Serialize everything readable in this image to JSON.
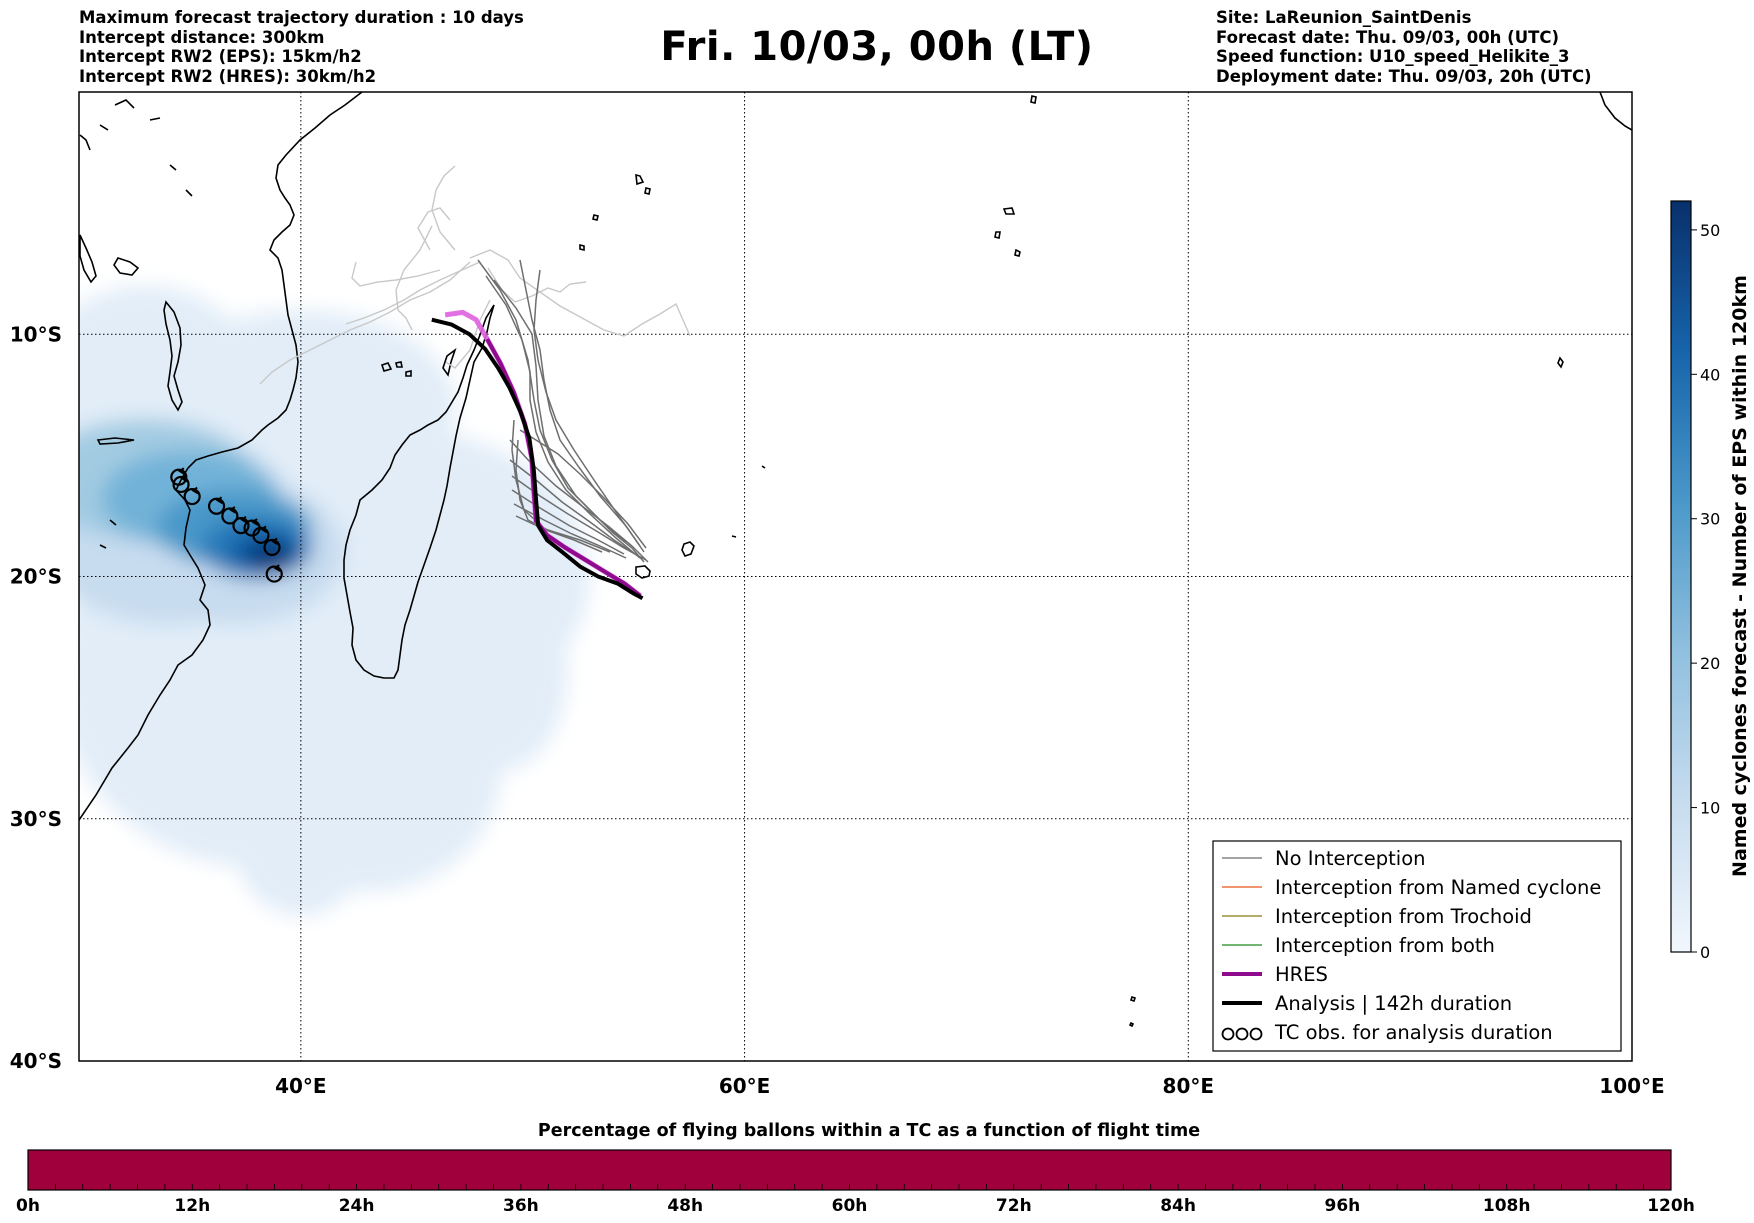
{
  "header": {
    "left_lines": [
      "Maximum forecast trajectory duration : 10 days",
      "Intercept distance: 300km",
      "Intercept RW2 (EPS):  15km/h2",
      "Intercept RW2 (HRES): 30km/h2"
    ],
    "title": "Fri. 10/03, 00h (LT)",
    "right_lines": [
      "Site: LaReunion_SaintDenis",
      "Forecast date: Thu. 09/03, 00h (UTC)",
      "Speed function: U10_speed_Helikite_3",
      "Deployment date: Thu. 09/03, 20h (UTC)"
    ]
  },
  "map": {
    "lon_range": [
      30,
      100
    ],
    "lat_range": [
      -40,
      0
    ],
    "lon_ticks": [
      {
        "value": 40,
        "label": "40°E"
      },
      {
        "value": 60,
        "label": "60°E"
      },
      {
        "value": 80,
        "label": "80°E"
      },
      {
        "value": 100,
        "label": "100°E"
      }
    ],
    "lat_ticks": [
      {
        "value": -10,
        "label": "10°S"
      },
      {
        "value": -20,
        "label": "20°S"
      },
      {
        "value": -30,
        "label": "30°S"
      },
      {
        "value": -40,
        "label": "40°S"
      }
    ],
    "colors": {
      "hres": "#8e0b8e",
      "hres_light": "#e060e0",
      "analysis": "#000000",
      "eps": "#6e6e6e",
      "eps_light": "#c8c8c8",
      "density_levels": [
        "#e2edf8",
        "#c7dcef",
        "#a2cbe2",
        "#72b2d8",
        "#4a98c9",
        "#2879b9",
        "#0d58a1",
        "#08306b"
      ]
    },
    "analysis_track": [
      [
        45.9,
        -9.4
      ],
      [
        46.8,
        -9.6
      ],
      [
        47.6,
        -10.0
      ],
      [
        48.3,
        -10.6
      ],
      [
        48.9,
        -11.4
      ],
      [
        49.4,
        -12.2
      ],
      [
        49.9,
        -13.2
      ],
      [
        50.3,
        -14.3
      ],
      [
        50.5,
        -15.6
      ],
      [
        50.6,
        -16.8
      ],
      [
        50.7,
        -17.9
      ],
      [
        51.1,
        -18.5
      ],
      [
        51.8,
        -19.0
      ],
      [
        52.6,
        -19.6
      ],
      [
        53.4,
        -20.0
      ],
      [
        54.3,
        -20.3
      ],
      [
        55.0,
        -20.7
      ],
      [
        55.4,
        -20.9
      ]
    ],
    "hres_track": [
      [
        46.5,
        -9.2
      ],
      [
        47.3,
        -9.1
      ],
      [
        47.9,
        -9.4
      ],
      [
        48.4,
        -10.2
      ],
      [
        49.0,
        -11.2
      ],
      [
        49.6,
        -12.4
      ],
      [
        50.1,
        -13.7
      ],
      [
        50.4,
        -15.1
      ],
      [
        50.5,
        -16.5
      ],
      [
        50.6,
        -17.7
      ],
      [
        51.1,
        -18.3
      ],
      [
        51.9,
        -18.8
      ],
      [
        52.8,
        -19.3
      ],
      [
        53.7,
        -19.8
      ],
      [
        54.6,
        -20.3
      ],
      [
        55.3,
        -20.8
      ]
    ],
    "tc_obs": [
      [
        34.5,
        -15.9
      ],
      [
        34.6,
        -16.2
      ],
      [
        35.1,
        -16.7
      ],
      [
        36.2,
        -17.1
      ],
      [
        36.8,
        -17.5
      ],
      [
        37.3,
        -17.9
      ],
      [
        37.8,
        -18.0
      ],
      [
        38.2,
        -18.3
      ],
      [
        38.7,
        -18.8
      ],
      [
        38.8,
        -19.9
      ]
    ]
  },
  "legend": {
    "items": [
      {
        "label": "No Interception",
        "color": "#6e6e6e",
        "width": 1.2
      },
      {
        "label": "Interception from Named cyclone",
        "color": "#e8561a",
        "width": 1.2
      },
      {
        "label": "Interception from Trochoid",
        "color": "#8a7a10",
        "width": 1.2
      },
      {
        "label": "Interception from both",
        "color": "#1e8a1e",
        "width": 1.2
      },
      {
        "label": "HRES",
        "color": "#8e0b8e",
        "width": 4
      },
      {
        "label": "Analysis | 142h duration",
        "color": "#000000",
        "width": 4
      }
    ],
    "obs_label": "TC obs. for analysis duration"
  },
  "colorbar_right": {
    "label": "Named cyclones forecast - Number of EPS within 120km",
    "min": 0,
    "max": 52,
    "ticks": [
      0,
      10,
      20,
      30,
      40,
      50
    ]
  },
  "colorbar_bottom": {
    "title": "Percentage of flying ballons within a TC as a function of flight time",
    "color": "#a0003c",
    "ticks": [
      "0h",
      "12h",
      "24h",
      "36h",
      "48h",
      "60h",
      "72h",
      "84h",
      "96h",
      "108h",
      "120h"
    ]
  }
}
